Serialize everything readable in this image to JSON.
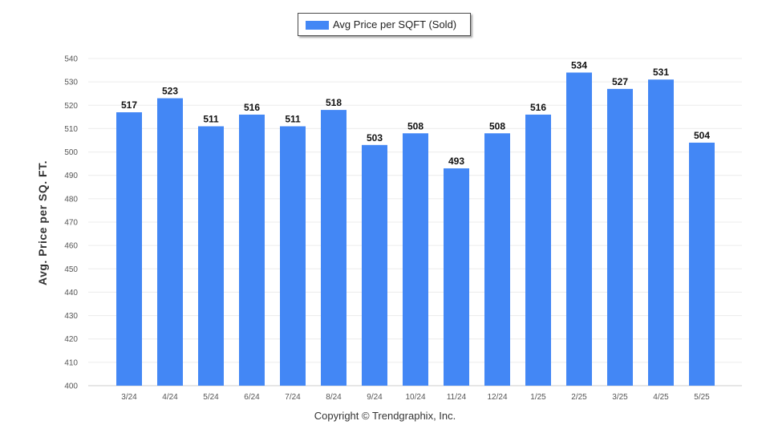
{
  "chart_data": {
    "type": "bar",
    "categories": [
      "3/24",
      "4/24",
      "5/24",
      "6/24",
      "7/24",
      "8/24",
      "9/24",
      "10/24",
      "11/24",
      "12/24",
      "1/25",
      "2/25",
      "3/25",
      "4/25",
      "5/25"
    ],
    "series": [
      {
        "name": "Avg Price per SQFT (Sold)",
        "values": [
          517,
          523,
          511,
          516,
          511,
          518,
          503,
          508,
          493,
          508,
          516,
          534,
          527,
          531,
          504
        ]
      }
    ],
    "ylabel": "Avg. Price per SQ. FT.",
    "ylim": [
      400,
      540
    ],
    "yticks": [
      400,
      410,
      420,
      430,
      440,
      450,
      460,
      470,
      480,
      490,
      500,
      510,
      520,
      530,
      540
    ],
    "grid": true,
    "legend_position": "top-center",
    "bar_color": "#4387f5"
  },
  "footer": {
    "copyright": "Copyright © Trendgraphix, Inc."
  }
}
